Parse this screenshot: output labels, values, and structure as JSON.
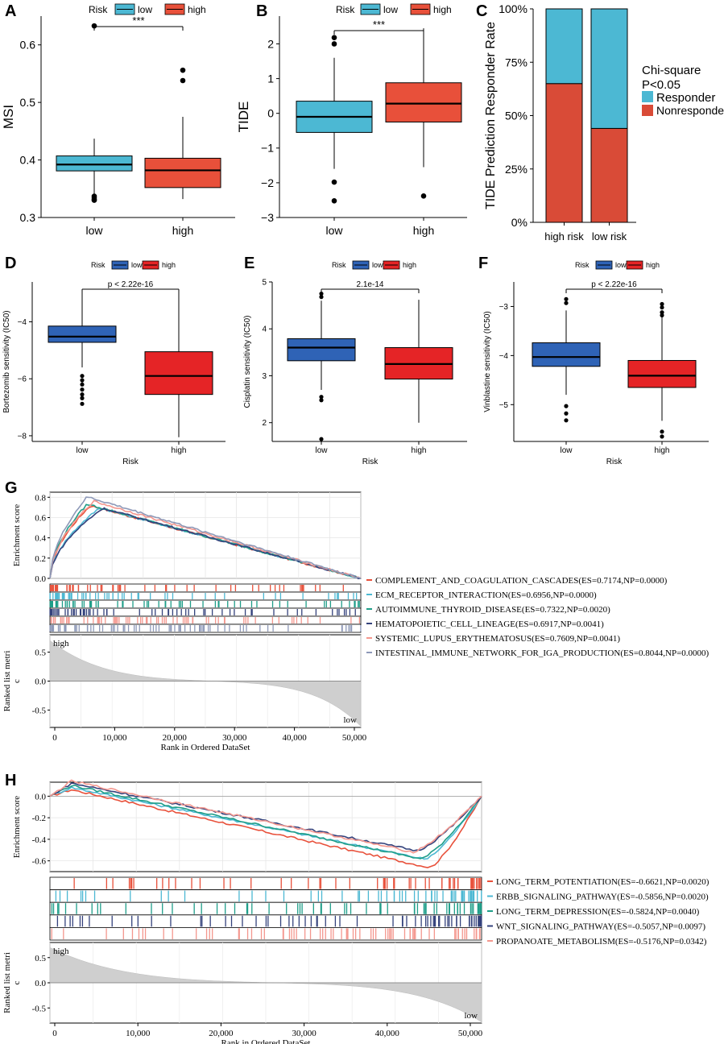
{
  "panel_letters": [
    "A",
    "B",
    "C",
    "D",
    "E",
    "F",
    "G",
    "H"
  ],
  "colors": {
    "low_top": "#4cb8d3",
    "high_top": "#e8503a",
    "low_mid": "#2f63b6",
    "high_mid": "#e52426",
    "responder": "#4cb8d3",
    "nonresponder": "#d94b37",
    "gseaG": [
      "#e8503a",
      "#4cb8d3",
      "#1f9e89",
      "#34427c",
      "#f4978e",
      "#8e99b8"
    ],
    "gseaH": [
      "#e8503a",
      "#4cb8d3",
      "#1f9e89",
      "#34427c",
      "#f4978e"
    ],
    "ranked_fill": "#cfcfcf"
  },
  "chart_data": [
    {
      "id": "A",
      "type": "box",
      "ylabel": "MSI",
      "ylim": [
        0.3,
        0.65
      ],
      "yticks": [
        0.3,
        0.4,
        0.5,
        0.6
      ],
      "legend_title": "Risk",
      "legend": [
        "low",
        "high"
      ],
      "significance": "***",
      "categories": [
        "low",
        "high"
      ],
      "boxes": [
        {
          "q1": 0.381,
          "median": 0.392,
          "q3": 0.407,
          "wlo": 0.34,
          "whi": 0.437,
          "outliers": [
            0.633,
            0.337,
            0.334,
            0.331,
            0.33
          ]
        },
        {
          "q1": 0.352,
          "median": 0.382,
          "q3": 0.403,
          "wlo": 0.332,
          "whi": 0.475,
          "outliers": [
            0.556,
            0.538
          ]
        }
      ]
    },
    {
      "id": "B",
      "type": "box",
      "ylabel": "TIDE",
      "ylim": [
        -3,
        2.8
      ],
      "yticks": [
        -3,
        -2,
        -1,
        0,
        1,
        2
      ],
      "legend_title": "Risk",
      "legend": [
        "low",
        "high"
      ],
      "significance": "***",
      "categories": [
        "low",
        "high"
      ],
      "boxes": [
        {
          "q1": -0.55,
          "median": -0.1,
          "q3": 0.35,
          "wlo": -1.6,
          "whi": 1.6,
          "outliers": [
            2.18,
            2.0,
            -1.98,
            -2.52
          ]
        },
        {
          "q1": -0.25,
          "median": 0.28,
          "q3": 0.88,
          "wlo": -1.55,
          "whi": 2.45,
          "outliers": [
            -2.38
          ]
        }
      ]
    },
    {
      "id": "C",
      "type": "stacked_bar",
      "ylabel": "TIDE Prediction Responder Rate",
      "yticks": [
        "0%",
        "25%",
        "50%",
        "75%",
        "100%"
      ],
      "categories": [
        "high risk",
        "low risk"
      ],
      "series": [
        {
          "name": "Nonresponder",
          "values": [
            65,
            44
          ]
        },
        {
          "name": "Responder",
          "values": [
            35,
            56
          ]
        }
      ],
      "annotation": [
        "Chi-square",
        "P<0.05"
      ],
      "legend": [
        "Responder",
        "Nonresponder"
      ]
    },
    {
      "id": "D",
      "type": "box",
      "ylabel": "Bortezomib sensitivity (IC50)",
      "xlabel": "Risk",
      "ylim": [
        -8.2,
        -2.6
      ],
      "yticks": [
        -8,
        -6,
        -4
      ],
      "legend_title": "Risk",
      "legend": [
        "low",
        "high"
      ],
      "significance": "p < 2.22e-16",
      "categories": [
        "low",
        "high"
      ],
      "boxes": [
        {
          "q1": -4.72,
          "median": -4.52,
          "q3": -4.15,
          "wlo": -5.6,
          "whi": -2.9,
          "outliers": [
            -5.9,
            -6.05,
            -6.2,
            -6.38,
            -6.55,
            -6.68,
            -6.88
          ]
        },
        {
          "q1": -6.55,
          "median": -5.9,
          "q3": -5.05,
          "wlo": -8.05,
          "whi": -2.9,
          "outliers": []
        }
      ]
    },
    {
      "id": "E",
      "type": "box",
      "ylabel": "Cisplatin sensitivity (IC50)",
      "xlabel": "Risk",
      "ylim": [
        1.6,
        5.0
      ],
      "yticks": [
        2,
        3,
        4,
        5
      ],
      "legend_title": "Risk",
      "legend": [
        "low",
        "high"
      ],
      "significance": "2.1e-14",
      "categories": [
        "low",
        "high"
      ],
      "boxes": [
        {
          "q1": 3.32,
          "median": 3.6,
          "q3": 3.79,
          "wlo": 2.7,
          "whi": 4.6,
          "outliers": [
            4.75,
            4.68,
            2.55,
            2.48,
            1.65
          ]
        },
        {
          "q1": 2.93,
          "median": 3.25,
          "q3": 3.6,
          "wlo": 2.0,
          "whi": 4.62,
          "outliers": []
        }
      ]
    },
    {
      "id": "F",
      "type": "box",
      "ylabel": "Vinblastine sensitivity (IC50)",
      "xlabel": "Risk",
      "ylim": [
        -5.75,
        -2.5
      ],
      "yticks": [
        -5,
        -4,
        -3
      ],
      "legend_title": "Risk",
      "legend": [
        "low",
        "high"
      ],
      "significance": "p < 2.22e-16",
      "categories": [
        "low",
        "high"
      ],
      "boxes": [
        {
          "q1": -4.22,
          "median": -4.03,
          "q3": -3.74,
          "wlo": -4.8,
          "whi": -3.08,
          "outliers": [
            -2.85,
            -2.93,
            -5.03,
            -5.18,
            -5.32
          ]
        },
        {
          "q1": -4.65,
          "median": -4.41,
          "q3": -4.1,
          "wlo": -5.33,
          "whi": -3.15,
          "outliers": [
            -2.95,
            -3.02,
            -3.12,
            -3.18,
            -5.55,
            -5.65
          ]
        }
      ]
    },
    {
      "id": "G",
      "type": "gsea",
      "es_ylabel": "Enrichment score",
      "rank_ylabel": "Ranked list metric",
      "xlabel": "Rank in Ordered DataSet",
      "xticks": [
        "0",
        "10,000",
        "20,000",
        "30,000",
        "40,000",
        "50,000"
      ],
      "es_ylim": [
        0,
        0.85
      ],
      "es_yticks": [
        "0.0",
        "0.2",
        "0.4",
        "0.6",
        "0.8"
      ],
      "rank_ylim": [
        -0.8,
        0.8
      ],
      "rank_yticks": [
        "0.5",
        "0.0",
        "-0.5"
      ],
      "high_label": "high",
      "low_label": "low",
      "gene_sets": [
        "COMPLEMENT_AND_COAGULATION_CASCADES(ES=0.7174,NP=0.0000)",
        "ECM_RECEPTOR_INTERACTION(ES=0.6956,NP=0.0000)",
        "AUTOIMMUNE_THYROID_DISEASE(ES=0.7322,NP=0.0020)",
        "HEMATOPOIETIC_CELL_LINEAGE(ES=0.6917,NP=0.0041)",
        "SYSTEMIC_LUPUS_ERYTHEMATOSUS(ES=0.7609,NP=0.0041)",
        "INTESTINAL_IMMUNE_NETWORK_FOR_IGA_PRODUCTION(ES=0.8044,NP=0.0000)"
      ],
      "es_values": [
        0.7174,
        0.6956,
        0.7322,
        0.6917,
        0.7609,
        0.8044
      ]
    },
    {
      "id": "H",
      "type": "gsea",
      "es_ylabel": "Enrichment score",
      "rank_ylabel": "Ranked list metric",
      "xlabel": "Rank in Ordered DataSet",
      "xticks": [
        "0",
        "10,000",
        "20,000",
        "30,000",
        "40,000",
        "50,000"
      ],
      "es_ylim": [
        -0.7,
        0.13
      ],
      "es_yticks": [
        "0.0",
        "-0.2",
        "-0.4",
        "-0.6"
      ],
      "rank_ylim": [
        -0.8,
        0.8
      ],
      "rank_yticks": [
        "0.5",
        "0.0",
        "-0.5"
      ],
      "high_label": "high",
      "low_label": "low",
      "gene_sets": [
        "LONG_TERM_POTENTIATION(ES=-0.6621,NP=0.0020)",
        "ERBB_SIGNALING_PATHWAY(ES=-0.5856,NP=0.0020)",
        "LONG_TERM_DEPRESSION(ES=-0.5824,NP=0.0040)",
        "WNT_SIGNALING_PATHWAY(ES=-0.5057,NP=0.0097)",
        "PROPANOATE_METABOLISM(ES=-0.5176,NP=0.0342)"
      ],
      "es_values": [
        -0.6621,
        -0.5856,
        -0.5824,
        -0.5057,
        -0.5176
      ]
    }
  ]
}
